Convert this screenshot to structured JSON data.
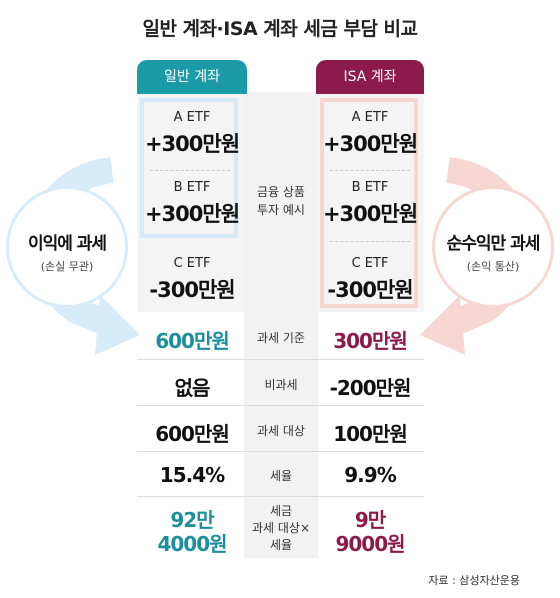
{
  "title": "일반 계좌·ISA 계좌 세금 부담 비교",
  "headers": {
    "left": "일반 계좌",
    "right": "ISA 계좌"
  },
  "etfs": [
    {
      "name": "A ETF",
      "value": "+300만원"
    },
    {
      "name": "B ETF",
      "value": "+300만원"
    },
    {
      "name": "C ETF",
      "value": "-300만원"
    }
  ],
  "middle_labels": {
    "products": [
      "금융 상품",
      "투자 예시"
    ],
    "tax_basis": "과세 기준",
    "non_taxable": "비과세",
    "taxable": "과세 대상",
    "tax_rate": "세율",
    "tax": [
      "세금",
      "과세 대상×",
      "세율"
    ]
  },
  "general": {
    "tax_basis": "600만원",
    "non_taxable": "없음",
    "taxable": "600만원",
    "tax_rate": "15.4%",
    "tax": [
      "92만",
      "4000원"
    ]
  },
  "isa": {
    "tax_basis": "300만원",
    "non_taxable": "-200만원",
    "taxable": "100만원",
    "tax_rate": "9.9%",
    "tax": [
      "9만",
      "9000원"
    ]
  },
  "left_circle": {
    "title": "이익에 과세",
    "subtitle": "(손실 무관)"
  },
  "right_circle": {
    "title": "순수익만 과세",
    "subtitle": "(손익 통산)"
  },
  "source": "자료 : 삼성자산운용",
  "colors": {
    "teal": "#1d9aa7",
    "plum": "#8c1a4b",
    "light_blue": "#d4ebf7",
    "light_pink": "#f7d6d1"
  }
}
